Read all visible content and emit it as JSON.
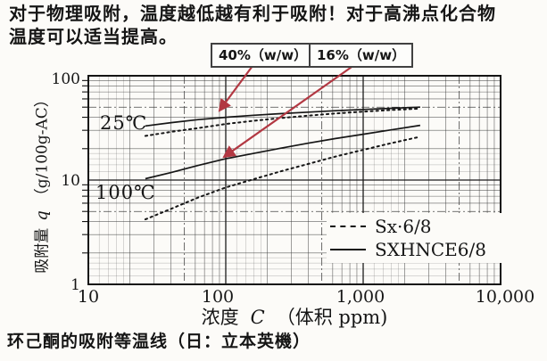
{
  "intro": {
    "line1": "对于物理吸附，温度越低越有利于吸附！对于高沸点化合物",
    "line2": "温度可以适当提高。"
  },
  "callouts": {
    "c40": "40%（w/w）",
    "c16": "16%（w/w）"
  },
  "chart_data": {
    "type": "line",
    "x_scale": "log",
    "y_scale": "log",
    "xlim": [
      10,
      10000
    ],
    "ylim": [
      1,
      100
    ],
    "xlabel_cn": "浓度",
    "xlabel_var": "C",
    "xlabel_unit": "（体积 ppm)",
    "ylabel_cn": "吸附量",
    "ylabel_var": "q",
    "ylabel_unit": "（g/100g-AC）",
    "x_ticks": [
      "10",
      "100",
      "1,000",
      "10,000"
    ],
    "y_ticks": [
      "100",
      "10",
      "1"
    ],
    "grid": "log-log graph paper, on",
    "legend_position": "inside lower right",
    "legend": [
      {
        "label": "Sx·6/8",
        "style": "dotted"
      },
      {
        "label": "SXHNCE6/8",
        "style": "solid"
      }
    ],
    "annotations": [
      "25℃",
      "100℃"
    ],
    "series": [
      {
        "name": "SXHNCE6/8 25℃",
        "style": "solid",
        "x": [
          26,
          40,
          63,
          100,
          160,
          250,
          400,
          630,
          1000,
          1600,
          2600
        ],
        "y": [
          33,
          35.5,
          38,
          40,
          41.8,
          43.3,
          44.8,
          46.2,
          47.5,
          48.8,
          50
        ]
      },
      {
        "name": "Sx·6/8 25℃",
        "style": "dotted",
        "x": [
          26,
          40,
          63,
          100,
          160,
          250,
          400,
          630,
          1000,
          1600,
          2600
        ],
        "y": [
          26.5,
          29,
          31.5,
          34.5,
          37,
          39.3,
          41.5,
          43.5,
          45.3,
          47,
          48.5
        ]
      },
      {
        "name": "SXHNCE6/8 100℃",
        "style": "solid",
        "x": [
          26,
          40,
          63,
          100,
          160,
          250,
          400,
          630,
          1000,
          1600,
          2600
        ],
        "y": [
          10.3,
          11.8,
          13.8,
          16,
          18,
          20.2,
          22.6,
          25,
          27.5,
          30.3,
          33.5
        ]
      },
      {
        "name": "Sx·6/8 100℃",
        "style": "dotted",
        "x": [
          26,
          40,
          63,
          100,
          160,
          250,
          400,
          630,
          1000,
          1600,
          2600
        ],
        "y": [
          4.2,
          5.3,
          6.8,
          8.5,
          10.2,
          12.1,
          14.3,
          16.8,
          19.5,
          22.6,
          26
        ]
      }
    ]
  },
  "caption": "环己酮的吸附等温线（日：立本英機）",
  "colors": {
    "arrow_red": "#b23842",
    "ink": "#151515",
    "paper": "#fcfbf8"
  }
}
